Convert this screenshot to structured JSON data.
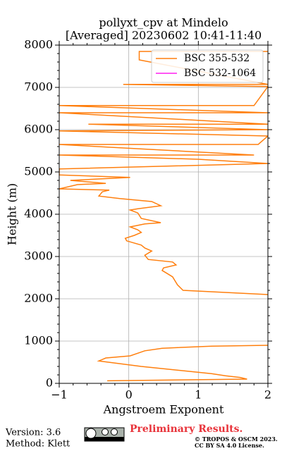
{
  "chart_data": {
    "type": "line",
    "title": "pollyxt_cpv at Mindelo",
    "subtitle": "[Averaged] 20230602 10:41-11:40",
    "x_label": "Angstroem Exponent",
    "y_label": "Height (m)",
    "y": [
      60,
      100,
      140,
      180,
      230,
      400,
      530,
      600,
      650,
      770,
      830,
      880,
      900,
      null,
      2100,
      2200,
      2330,
      2520,
      2620,
      2670,
      2730,
      2800,
      2870,
      2930,
      3030,
      3130,
      3200,
      3270,
      3370,
      3430,
      3500,
      3570,
      3630,
      3700,
      3770,
      3800,
      3900,
      4030,
      4100,
      4130,
      4200,
      4300,
      4370,
      4430,
      4530,
      4570,
      4600,
      4700,
      4730,
      4800,
      4870,
      4930,
      5070,
      5200,
      5300,
      5400,
      5400,
      5650,
      5650,
      5850,
      5970,
      6000,
      6130,
      6130,
      6400,
      6400,
      6570,
      6570,
      7020,
      7070,
      7070,
      7650,
      7850,
      7850
    ],
    "series": [
      {
        "name": "BSC 355-532",
        "color": "#ff7f0e",
        "values": [
          -0.31,
          1.7,
          1.6,
          1.39,
          1.19,
          0.18,
          -0.43,
          -0.33,
          0.02,
          0.23,
          0.48,
          1.19,
          2.0,
          null,
          2.0,
          0.78,
          0.7,
          0.63,
          0.53,
          0.48,
          0.5,
          0.68,
          0.63,
          0.28,
          0.23,
          0.33,
          0.23,
          0.18,
          -0.03,
          -0.05,
          0.08,
          0.18,
          0.13,
          0.02,
          0.23,
          0.46,
          0.18,
          0.13,
          0.02,
          0.13,
          0.46,
          0.33,
          -0.13,
          -0.43,
          -0.38,
          -0.28,
          -1.0,
          -0.74,
          -0.33,
          -0.84,
          0.02,
          -1.0,
          -1.0,
          2.0,
          1.0,
          -1.0,
          1.8,
          -1.0,
          1.86,
          2.0,
          -1.0,
          2.0,
          -0.58,
          2.0,
          -1.0,
          2.0,
          -1.0,
          1.8,
          2.0,
          -0.08,
          2.0,
          0.15,
          0.15,
          2.0
        ]
      },
      {
        "name": "BSC 532-1064",
        "color": "#ff1ff0",
        "values": [
          null,
          null,
          null,
          null,
          null,
          null,
          null,
          null,
          null,
          null,
          null,
          null,
          null,
          null,
          null,
          null,
          null,
          null,
          null,
          null,
          null,
          null,
          null,
          null,
          null,
          null,
          null,
          null,
          null,
          null,
          null,
          null,
          null,
          null,
          null,
          null,
          null,
          null,
          null,
          null,
          null,
          null,
          null,
          null,
          null,
          null,
          null,
          null,
          null,
          null,
          null,
          null,
          null,
          null,
          null,
          null,
          null,
          null,
          null,
          null,
          null,
          null,
          null,
          null,
          null,
          null,
          null,
          null,
          null,
          null,
          null,
          null,
          null,
          null
        ]
      }
    ],
    "xlim": [
      -1,
      2
    ],
    "ylim": [
      0,
      8000
    ],
    "xticks": [
      {
        "value": -1,
        "label": "−1"
      },
      0,
      1,
      2
    ],
    "yticks": [
      0,
      1000,
      2000,
      3000,
      4000,
      5000,
      6000,
      7000,
      8000
    ],
    "grid": true,
    "legend": "upper right"
  },
  "footer": {
    "version": "Version: 3.6",
    "method": "Method: Klett",
    "preliminary": "Preliminary Results.",
    "copyright": "© TROPOS & OSCM 2023.",
    "license": "CC BY SA 4.0 License."
  }
}
